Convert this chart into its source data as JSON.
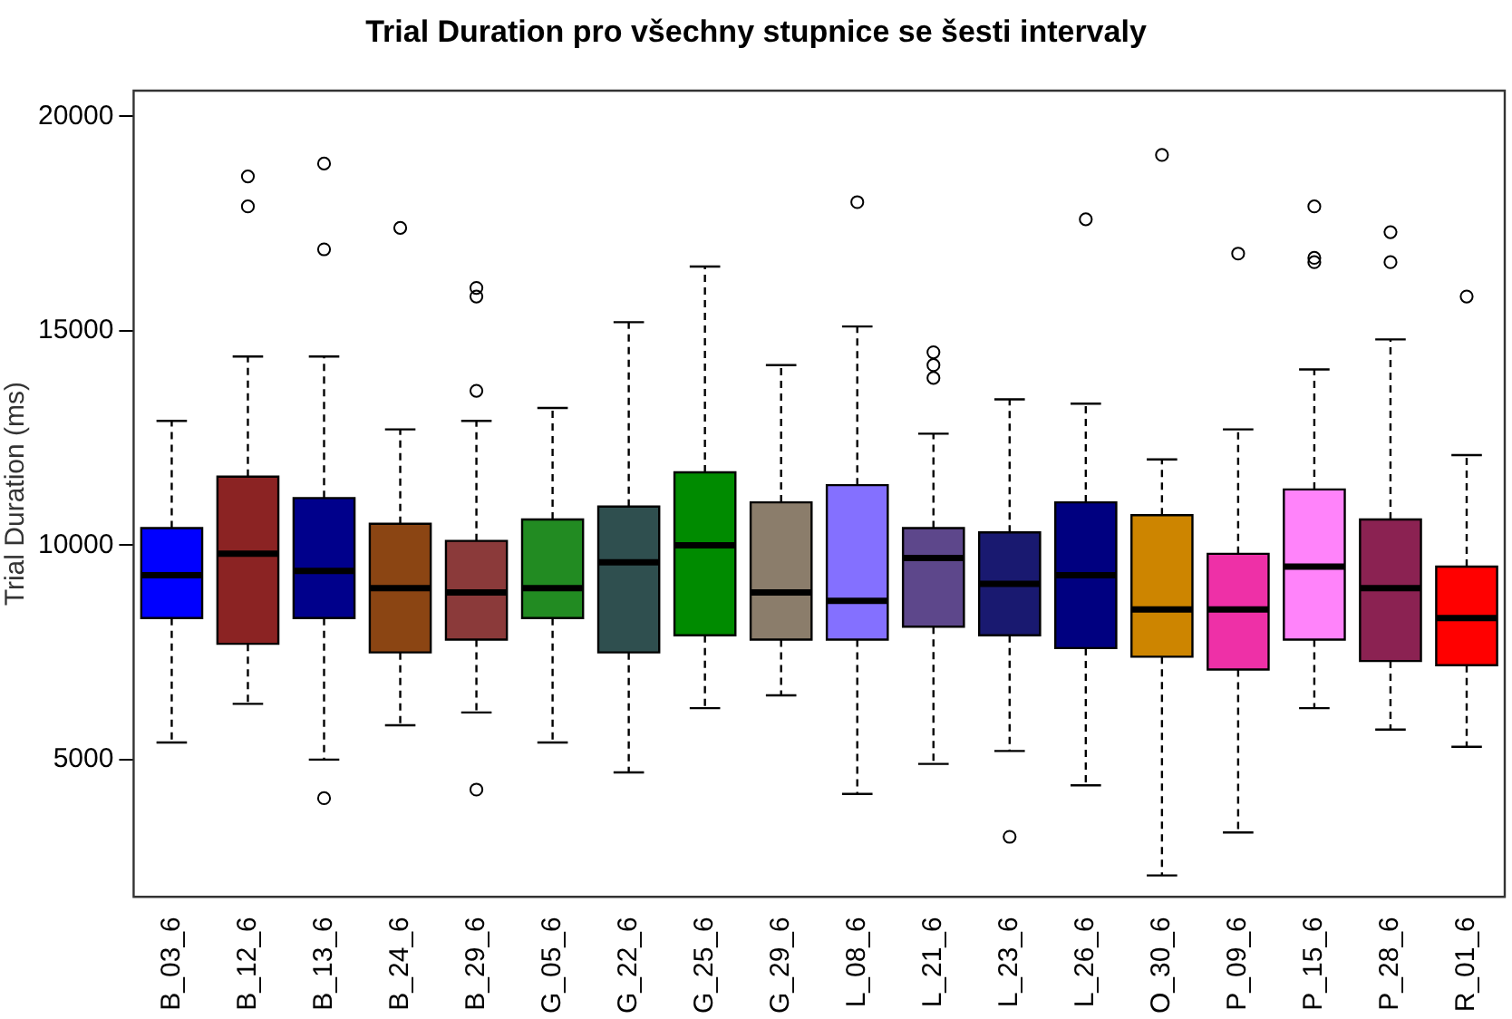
{
  "chart_data": {
    "type": "box",
    "title": "Trial Duration pro všechny stupnice se šesti intervaly",
    "ylabel": "Trial Duration (ms)",
    "categories": [
      "B_03_6",
      "B_12_6",
      "B_13_6",
      "B_24_6",
      "B_29_6",
      "G_05_6",
      "G_22_6",
      "G_25_6",
      "G_29_6",
      "L_08_6",
      "L_21_6",
      "L_23_6",
      "L_26_6",
      "O_30_6",
      "P_09_6",
      "P_15_6",
      "P_28_6",
      "R_01_6"
    ],
    "colors": [
      "#0000ff",
      "#8b2323",
      "#00008b",
      "#8b4513",
      "#8b3a3a",
      "#228b22",
      "#2f4f4f",
      "#008b00",
      "#8b7d6b",
      "#8470ff",
      "#5d478b",
      "#191970",
      "#000080",
      "#cd8500",
      "#ee30a7",
      "#ff83fa",
      "#8b2252",
      "#ff0000"
    ],
    "boxes": [
      {
        "low": 5400,
        "q1": 8300,
        "median": 9300,
        "q3": 10400,
        "high": 12900
      },
      {
        "low": 6300,
        "q1": 7700,
        "median": 9800,
        "q3": 11600,
        "high": 14400,
        "outliers": [
          18600,
          17900
        ]
      },
      {
        "low": 5000,
        "q1": 8300,
        "median": 9400,
        "q3": 11100,
        "high": 14400,
        "outliers": [
          18900,
          16900,
          4100
        ]
      },
      {
        "low": 5800,
        "q1": 7500,
        "median": 9000,
        "q3": 10500,
        "high": 12700,
        "outliers": [
          17400
        ]
      },
      {
        "low": 6100,
        "q1": 7800,
        "median": 8900,
        "q3": 10100,
        "high": 12900,
        "outliers": [
          16000,
          15800,
          13600,
          4300
        ]
      },
      {
        "low": 5400,
        "q1": 8300,
        "median": 9000,
        "q3": 10600,
        "high": 13200
      },
      {
        "low": 4700,
        "q1": 7500,
        "median": 9600,
        "q3": 10900,
        "high": 15200
      },
      {
        "low": 6200,
        "q1": 7900,
        "median": 10000,
        "q3": 11700,
        "high": 16500
      },
      {
        "low": 6500,
        "q1": 7800,
        "median": 8900,
        "q3": 11000,
        "high": 14200
      },
      {
        "low": 4200,
        "q1": 7800,
        "median": 8700,
        "q3": 11400,
        "high": 15100,
        "outliers": [
          18000
        ]
      },
      {
        "low": 4900,
        "q1": 8100,
        "median": 9700,
        "q3": 10400,
        "high": 12600,
        "outliers": [
          14500,
          14200,
          13900
        ]
      },
      {
        "low": 5200,
        "q1": 7900,
        "median": 9100,
        "q3": 10300,
        "high": 13400,
        "outliers": [
          3200
        ]
      },
      {
        "low": 4400,
        "q1": 7600,
        "median": 9300,
        "q3": 11000,
        "high": 13300,
        "outliers": [
          17600
        ]
      },
      {
        "low": 2300,
        "q1": 7400,
        "median": 8500,
        "q3": 10700,
        "high": 12000,
        "outliers": [
          19100
        ]
      },
      {
        "low": 3300,
        "q1": 7100,
        "median": 8500,
        "q3": 9800,
        "high": 12700,
        "outliers": [
          16800
        ]
      },
      {
        "low": 6200,
        "q1": 7800,
        "median": 9500,
        "q3": 11300,
        "high": 14100,
        "outliers": [
          17900,
          16600,
          16700
        ]
      },
      {
        "low": 5700,
        "q1": 7300,
        "median": 9000,
        "q3": 10600,
        "high": 14800,
        "outliers": [
          17300,
          16600
        ]
      },
      {
        "low": 5300,
        "q1": 7200,
        "median": 8300,
        "q3": 9500,
        "high": 12100,
        "outliers": [
          15800
        ]
      }
    ],
    "ylim": [
      1800,
      20600
    ],
    "yticks": [
      5000,
      10000,
      15000,
      20000
    ],
    "grid": false,
    "legend": false
  }
}
